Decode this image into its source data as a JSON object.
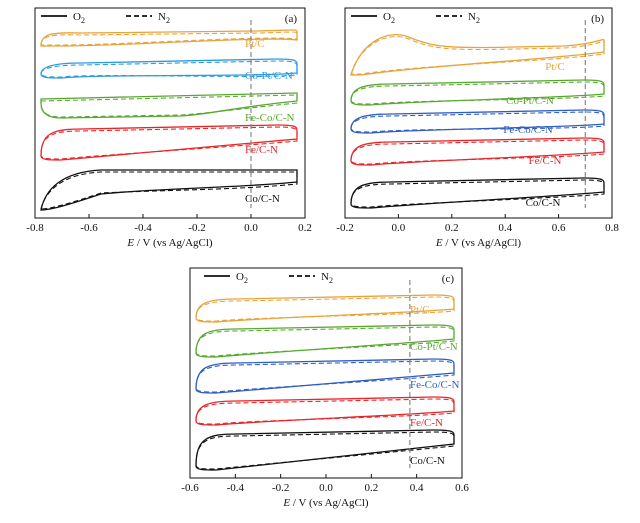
{
  "chart_data": [
    {
      "panel": "(a)",
      "type": "line",
      "xlabel_italic": "E",
      "xlabel_rest": " / V (vs Ag/AgCl)",
      "xlim": [
        -0.8,
        0.2
      ],
      "xticks": [
        "-0.8",
        "-0.6",
        "-0.4",
        "-0.2",
        "0.0",
        "0.2"
      ],
      "xtick_values": [
        -0.8,
        -0.6,
        -0.4,
        -0.2,
        0.0,
        0.2
      ],
      "marker_x": 0.0,
      "legend": [
        {
          "label": "O",
          "sub": "2",
          "style": "solid"
        },
        {
          "label": "N",
          "sub": "2",
          "style": "dashed"
        }
      ],
      "series": [
        {
          "name": "Pt/C",
          "color": "#e8a43c"
        },
        {
          "name": "Co-Pt/C-N",
          "color": "#2b9be0"
        },
        {
          "name": "Fe-Co/C-N",
          "color": "#5aa832"
        },
        {
          "name": "Fe/C-N",
          "color": "#e8262a"
        },
        {
          "name": "Co/C-N",
          "color": "#111111"
        }
      ]
    },
    {
      "panel": "(b)",
      "type": "line",
      "xlabel_italic": "E",
      "xlabel_rest": " / V (vs Ag/AgCl)",
      "xlim": [
        -0.2,
        0.8
      ],
      "xticks": [
        "-0.2",
        "0.0",
        "0.2",
        "0.4",
        "0.6",
        "0.8"
      ],
      "xtick_values": [
        -0.2,
        0.0,
        0.2,
        0.4,
        0.6,
        0.8
      ],
      "marker_x": 0.7,
      "legend": [
        {
          "label": "O",
          "sub": "2",
          "style": "solid"
        },
        {
          "label": "N",
          "sub": "2",
          "style": "dashed"
        }
      ],
      "series": [
        {
          "name": "Pt/C",
          "color": "#e8a43c"
        },
        {
          "name": "Co-Pt/C-N",
          "color": "#5aa832"
        },
        {
          "name": "Fe-Co/C-N",
          "color": "#2f5fc0"
        },
        {
          "name": "Fe/C-N",
          "color": "#e8262a"
        },
        {
          "name": "Co/C-N",
          "color": "#111111"
        }
      ]
    },
    {
      "panel": "(c)",
      "type": "line",
      "xlabel_italic": "E",
      "xlabel_rest": " / V (vs Ag/AgCl)",
      "xlim": [
        -0.6,
        0.6
      ],
      "xticks": [
        "-0.6",
        "-0.4",
        "-0.2",
        "0.0",
        "0.2",
        "0.4",
        "0.6"
      ],
      "xtick_values": [
        -0.6,
        -0.4,
        -0.2,
        0.0,
        0.2,
        0.4,
        0.6
      ],
      "marker_x": 0.37,
      "legend": [
        {
          "label": "O",
          "sub": "2",
          "style": "solid"
        },
        {
          "label": "N",
          "sub": "2",
          "style": "dashed"
        }
      ],
      "series": [
        {
          "name": "Pt/C",
          "color": "#e8a43c"
        },
        {
          "name": "Co-Pt/C-N",
          "color": "#5aa832"
        },
        {
          "name": "Fe-Co/C-N",
          "color": "#2f5fc0"
        },
        {
          "name": "Fe/C-N",
          "color": "#e8262a"
        },
        {
          "name": "Co/C-N",
          "color": "#111111"
        }
      ]
    }
  ]
}
